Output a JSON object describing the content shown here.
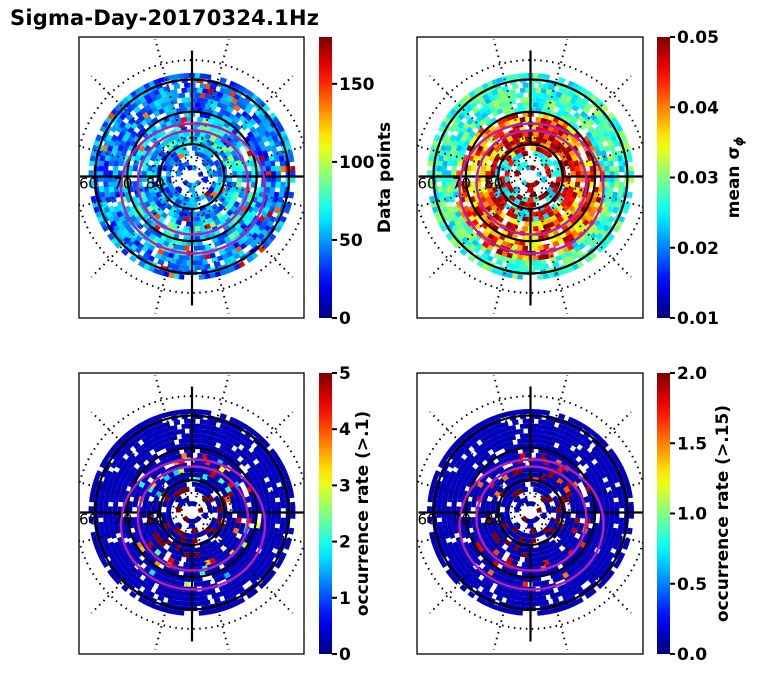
{
  "title": "Sigma-Day-20170324.1Hz",
  "chart_data": [
    {
      "type": "heatmap",
      "projection": "polar (magnetic latitude / MLT)",
      "title": "",
      "lat_labels": [
        "60",
        "70",
        "80"
      ],
      "colormap": "jet",
      "colorbar": {
        "label": "Data points",
        "range": [
          0,
          180
        ],
        "ticks": [
          0,
          50,
          100,
          150
        ]
      },
      "cell_value_summary": "mostly 0-60 (blue), bands of 60-120 (cyan/green) near 70-80 deg, isolated values up to ~170",
      "pattern": "mixed"
    },
    {
      "type": "heatmap",
      "projection": "polar (magnetic latitude / MLT)",
      "title": "",
      "lat_labels": [
        "60",
        "70",
        "80"
      ],
      "colormap": "jet",
      "colorbar": {
        "label": "mean σφ",
        "range": [
          0.01,
          0.05
        ],
        "ticks": [
          0.01,
          0.02,
          0.03,
          0.04,
          0.05
        ]
      },
      "cell_value_summary": "0.02-0.03 at lower latitudes, 0.035-0.05 within auroral oval near 75-80 deg",
      "pattern": "high"
    },
    {
      "type": "heatmap",
      "projection": "polar (magnetic latitude / MLT)",
      "title": "",
      "lat_labels": [
        "60",
        "70",
        "80"
      ],
      "colormap": "jet",
      "colorbar": {
        "label": "occurrence rate (>.1)",
        "range": [
          0,
          5
        ],
        "ticks": [
          0,
          1,
          2,
          3,
          4,
          5
        ]
      },
      "cell_value_summary": "mostly 0; scattered cells 1-5 along oval, dark red (~5) on dayside near 80 deg",
      "pattern": "sparse"
    },
    {
      "type": "heatmap",
      "projection": "polar (magnetic latitude / MLT)",
      "title": "",
      "lat_labels": [
        "60",
        "70",
        "80"
      ],
      "colormap": "jet",
      "colorbar": {
        "label": "occurrence rate (>.15)",
        "range": [
          0.0,
          2.0
        ],
        "ticks": [
          0.0,
          0.5,
          1.0,
          1.5,
          2.0
        ]
      },
      "cell_value_summary": "mostly 0.0; a few cells ~2.0 (dark red) and ~1.5 (orange) along oval",
      "pattern": "sparse2"
    }
  ],
  "overlay": {
    "auroral_oval_color": "#b41fb4",
    "grid_color": "#000000"
  },
  "colorbar_ticks_text": [
    [
      "0",
      "50",
      "100",
      "150"
    ],
    [
      "0.01",
      "0.02",
      "0.03",
      "0.04",
      "0.05"
    ],
    [
      "0",
      "1",
      "2",
      "3",
      "4",
      "5"
    ],
    [
      "0.0",
      "0.5",
      "1.0",
      "1.5",
      "2.0"
    ]
  ],
  "colorbar_labels": [
    "Data points",
    "mean σ",
    "occurrence rate (>.1)",
    "occurrence rate (>.15)"
  ],
  "colorbar_sub": "ϕ"
}
